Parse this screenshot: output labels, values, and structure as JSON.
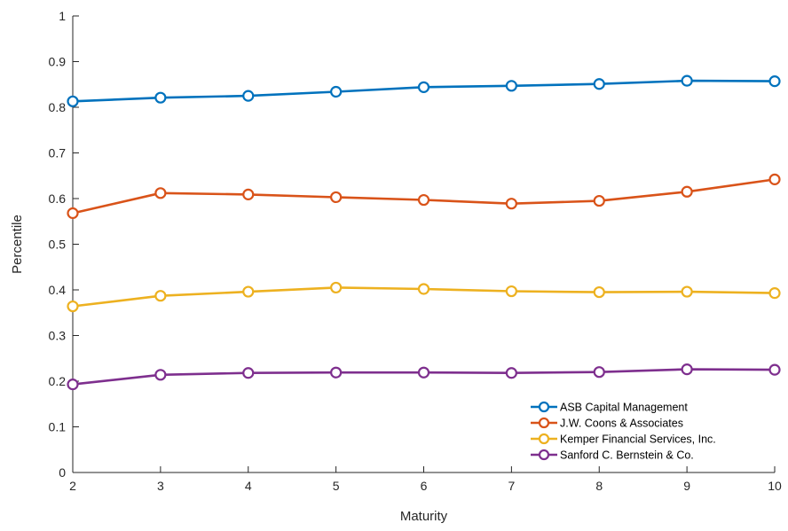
{
  "chart_data": {
    "type": "line",
    "xlabel": "Maturity",
    "ylabel": "Percentile",
    "xlim": [
      2,
      10
    ],
    "ylim": [
      0,
      1
    ],
    "x": [
      2,
      3,
      4,
      5,
      6,
      7,
      8,
      9,
      10
    ],
    "x_ticks": [
      2,
      3,
      4,
      5,
      6,
      7,
      8,
      9,
      10
    ],
    "y_ticks": [
      0,
      0.1,
      0.2,
      0.3,
      0.4,
      0.5,
      0.6,
      0.7,
      0.8,
      0.9,
      1
    ],
    "y_tick_labels": [
      "0",
      "0.1",
      "0.2",
      "0.3",
      "0.4",
      "0.5",
      "0.6",
      "0.7",
      "0.8",
      "0.9",
      "1"
    ],
    "grid": false,
    "legend_position": "lower-right",
    "marker": "circle",
    "series": [
      {
        "name": "ASB Capital Management",
        "color": "#0072BD",
        "values": [
          0.813,
          0.821,
          0.825,
          0.834,
          0.844,
          0.847,
          0.851,
          0.858,
          0.857
        ]
      },
      {
        "name": "J.W. Coons & Associates",
        "color": "#D95319",
        "values": [
          0.568,
          0.612,
          0.609,
          0.603,
          0.597,
          0.589,
          0.595,
          0.615,
          0.642
        ]
      },
      {
        "name": "Kemper Financial Services, Inc.",
        "color": "#EDB120",
        "values": [
          0.364,
          0.387,
          0.396,
          0.405,
          0.402,
          0.397,
          0.395,
          0.396,
          0.393
        ]
      },
      {
        "name": "Sanford C. Bernstein & Co.",
        "color": "#7E2F8E",
        "values": [
          0.193,
          0.214,
          0.218,
          0.219,
          0.219,
          0.218,
          0.22,
          0.226,
          0.225
        ]
      }
    ]
  }
}
